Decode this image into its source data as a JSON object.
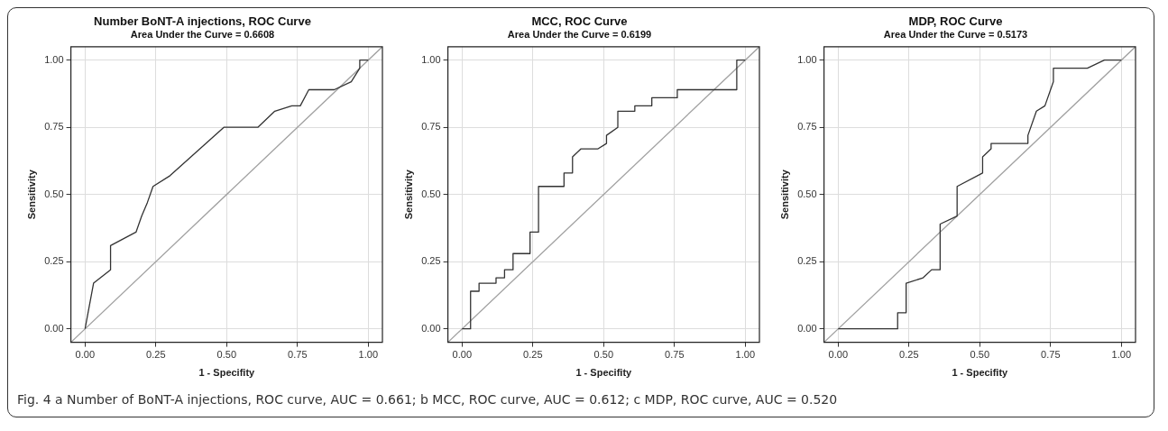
{
  "chart_data": [
    {
      "type": "line",
      "title": "Number BoNT-A injections, ROC Curve",
      "subtitle": "Area Under the Curve = 0.6608",
      "xlabel": "1 - Specifity",
      "ylabel": "Sensitivity",
      "xlim": [
        -0.05,
        1.05
      ],
      "ylim": [
        -0.05,
        1.05
      ],
      "xticks": [
        {
          "value": 0,
          "label": "0.00"
        },
        {
          "value": 0.25,
          "label": "0.25"
        },
        {
          "value": 0.5,
          "label": "0.50"
        },
        {
          "value": 0.75,
          "label": "0.75"
        },
        {
          "value": 1,
          "label": "1.00"
        }
      ],
      "yticks": [
        {
          "value": 0,
          "label": "0.00"
        },
        {
          "value": 0.25,
          "label": "0.25"
        },
        {
          "value": 0.5,
          "label": "0.50"
        },
        {
          "value": 0.75,
          "label": "0.75"
        },
        {
          "value": 1,
          "label": "1.00"
        }
      ],
      "grid": true,
      "legend": false,
      "marker": "none",
      "line_style": "solid",
      "annotations": [
        "Fig. 4 a Number of BoNT-A injections, ROC curve, AUC = 0.661; b MCC, ROC curve, AUC = 0.612; c MDP, ROC curve, AUC = 0.520"
      ],
      "series": [
        {
          "type": "line",
          "color": "#333333",
          "x": [
            0,
            0.03,
            0.09,
            0.09,
            0.18,
            0.2,
            0.22,
            0.24,
            0.3,
            0.49,
            0.61,
            0.67,
            0.73,
            0.76,
            0.79,
            0.88,
            0.94,
            0.97,
            0.97,
            1
          ],
          "values": [
            0,
            0.17,
            0.22,
            0.31,
            0.36,
            0.42,
            0.47,
            0.53,
            0.57,
            0.75,
            0.75,
            0.81,
            0.83,
            0.83,
            0.89,
            0.89,
            0.92,
            0.97,
            1,
            1
          ]
        },
        {
          "type": "line",
          "color": "#a0a0a0",
          "x": [
            -0.05,
            1.05
          ],
          "values": [
            -0.05,
            1.05
          ]
        }
      ]
    },
    {
      "type": "line",
      "title": "MCC, ROC Curve",
      "subtitle": "Area Under the Curve = 0.6199",
      "xlabel": "1 - Specifity",
      "ylabel": "Sensitivity",
      "xlim": [
        -0.05,
        1.05
      ],
      "ylim": [
        -0.05,
        1.05
      ],
      "xticks": [
        {
          "value": 0,
          "label": "0.00"
        },
        {
          "value": 0.25,
          "label": "0.25"
        },
        {
          "value": 0.5,
          "label": "0.50"
        },
        {
          "value": 0.75,
          "label": "0.75"
        },
        {
          "value": 1,
          "label": "1.00"
        }
      ],
      "yticks": [
        {
          "value": 0,
          "label": "0.00"
        },
        {
          "value": 0.25,
          "label": "0.25"
        },
        {
          "value": 0.5,
          "label": "0.50"
        },
        {
          "value": 0.75,
          "label": "0.75"
        },
        {
          "value": 1,
          "label": "1.00"
        }
      ],
      "grid": true,
      "legend": false,
      "marker": "none",
      "line_style": "solid",
      "series": [
        {
          "type": "line",
          "color": "#333333",
          "x": [
            0,
            0.03,
            0.03,
            0.06,
            0.06,
            0.12,
            0.12,
            0.15,
            0.15,
            0.18,
            0.18,
            0.24,
            0.24,
            0.27,
            0.27,
            0.36,
            0.36,
            0.39,
            0.39,
            0.42,
            0.48,
            0.51,
            0.51,
            0.55,
            0.55,
            0.61,
            0.61,
            0.67,
            0.67,
            0.76,
            0.76,
            0.97,
            0.97,
            1
          ],
          "values": [
            0,
            0,
            0.14,
            0.14,
            0.17,
            0.17,
            0.19,
            0.19,
            0.22,
            0.22,
            0.28,
            0.28,
            0.36,
            0.36,
            0.53,
            0.53,
            0.58,
            0.58,
            0.64,
            0.67,
            0.67,
            0.69,
            0.72,
            0.75,
            0.81,
            0.81,
            0.83,
            0.83,
            0.86,
            0.86,
            0.89,
            0.89,
            1,
            1
          ]
        },
        {
          "type": "line",
          "color": "#a0a0a0",
          "x": [
            -0.05,
            1.05
          ],
          "values": [
            -0.05,
            1.05
          ]
        }
      ]
    },
    {
      "type": "line",
      "title": "MDP, ROC Curve",
      "subtitle": "Area Under the Curve = 0.5173",
      "xlabel": "1 - Specifity",
      "ylabel": "Sensitivity",
      "xlim": [
        -0.05,
        1.05
      ],
      "ylim": [
        -0.05,
        1.05
      ],
      "xticks": [
        {
          "value": 0,
          "label": "0.00"
        },
        {
          "value": 0.25,
          "label": "0.25"
        },
        {
          "value": 0.5,
          "label": "0.50"
        },
        {
          "value": 0.75,
          "label": "0.75"
        },
        {
          "value": 1,
          "label": "1.00"
        }
      ],
      "yticks": [
        {
          "value": 0,
          "label": "0.00"
        },
        {
          "value": 0.25,
          "label": "0.25"
        },
        {
          "value": 0.5,
          "label": "0.50"
        },
        {
          "value": 0.75,
          "label": "0.75"
        },
        {
          "value": 1,
          "label": "1.00"
        }
      ],
      "grid": true,
      "legend": false,
      "marker": "none",
      "line_style": "solid",
      "series": [
        {
          "type": "line",
          "color": "#333333",
          "x": [
            0,
            0.21,
            0.21,
            0.24,
            0.24,
            0.3,
            0.33,
            0.36,
            0.36,
            0.42,
            0.42,
            0.51,
            0.51,
            0.54,
            0.54,
            0.67,
            0.67,
            0.7,
            0.73,
            0.76,
            0.76,
            0.88,
            0.94,
            1
          ],
          "values": [
            0,
            0,
            0.06,
            0.06,
            0.17,
            0.19,
            0.22,
            0.22,
            0.39,
            0.42,
            0.53,
            0.58,
            0.64,
            0.67,
            0.69,
            0.69,
            0.72,
            0.81,
            0.83,
            0.92,
            0.97,
            0.97,
            1,
            1
          ]
        },
        {
          "type": "line",
          "color": "#a0a0a0",
          "x": [
            -0.05,
            1.05
          ],
          "values": [
            -0.05,
            1.05
          ]
        }
      ]
    }
  ]
}
